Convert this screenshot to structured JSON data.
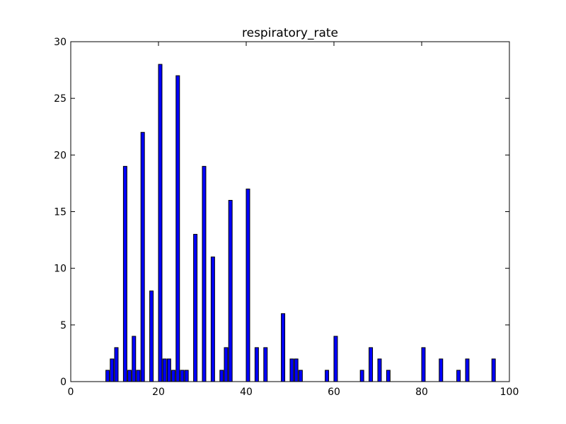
{
  "chart_data": {
    "type": "bar",
    "title": "respiratory_rate",
    "xlabel": "",
    "ylabel": "",
    "xlim": [
      0,
      100
    ],
    "ylim": [
      0,
      30
    ],
    "xticks": [
      0,
      20,
      40,
      60,
      80,
      100
    ],
    "yticks": [
      0,
      5,
      10,
      15,
      20,
      25,
      30
    ],
    "grid": false,
    "legend": "none",
    "bar_color": "#0000ff",
    "bar_edge_color": "#000000",
    "bar_width": 0.8,
    "x": [
      8,
      9,
      10,
      12,
      13,
      14,
      15,
      16,
      18,
      20,
      21,
      22,
      23,
      24,
      25,
      26,
      28,
      30,
      32,
      34,
      35,
      36,
      40,
      42,
      44,
      48,
      50,
      51,
      52,
      58,
      60,
      66,
      68,
      70,
      72,
      80,
      84,
      88,
      90,
      96
    ],
    "values": [
      1,
      2,
      3,
      19,
      1,
      4,
      1,
      22,
      8,
      28,
      2,
      2,
      1,
      27,
      1,
      1,
      13,
      19,
      11,
      1,
      3,
      16,
      17,
      3,
      3,
      6,
      2,
      2,
      1,
      1,
      4,
      1,
      3,
      2,
      1,
      3,
      2,
      1,
      2,
      2
    ]
  }
}
